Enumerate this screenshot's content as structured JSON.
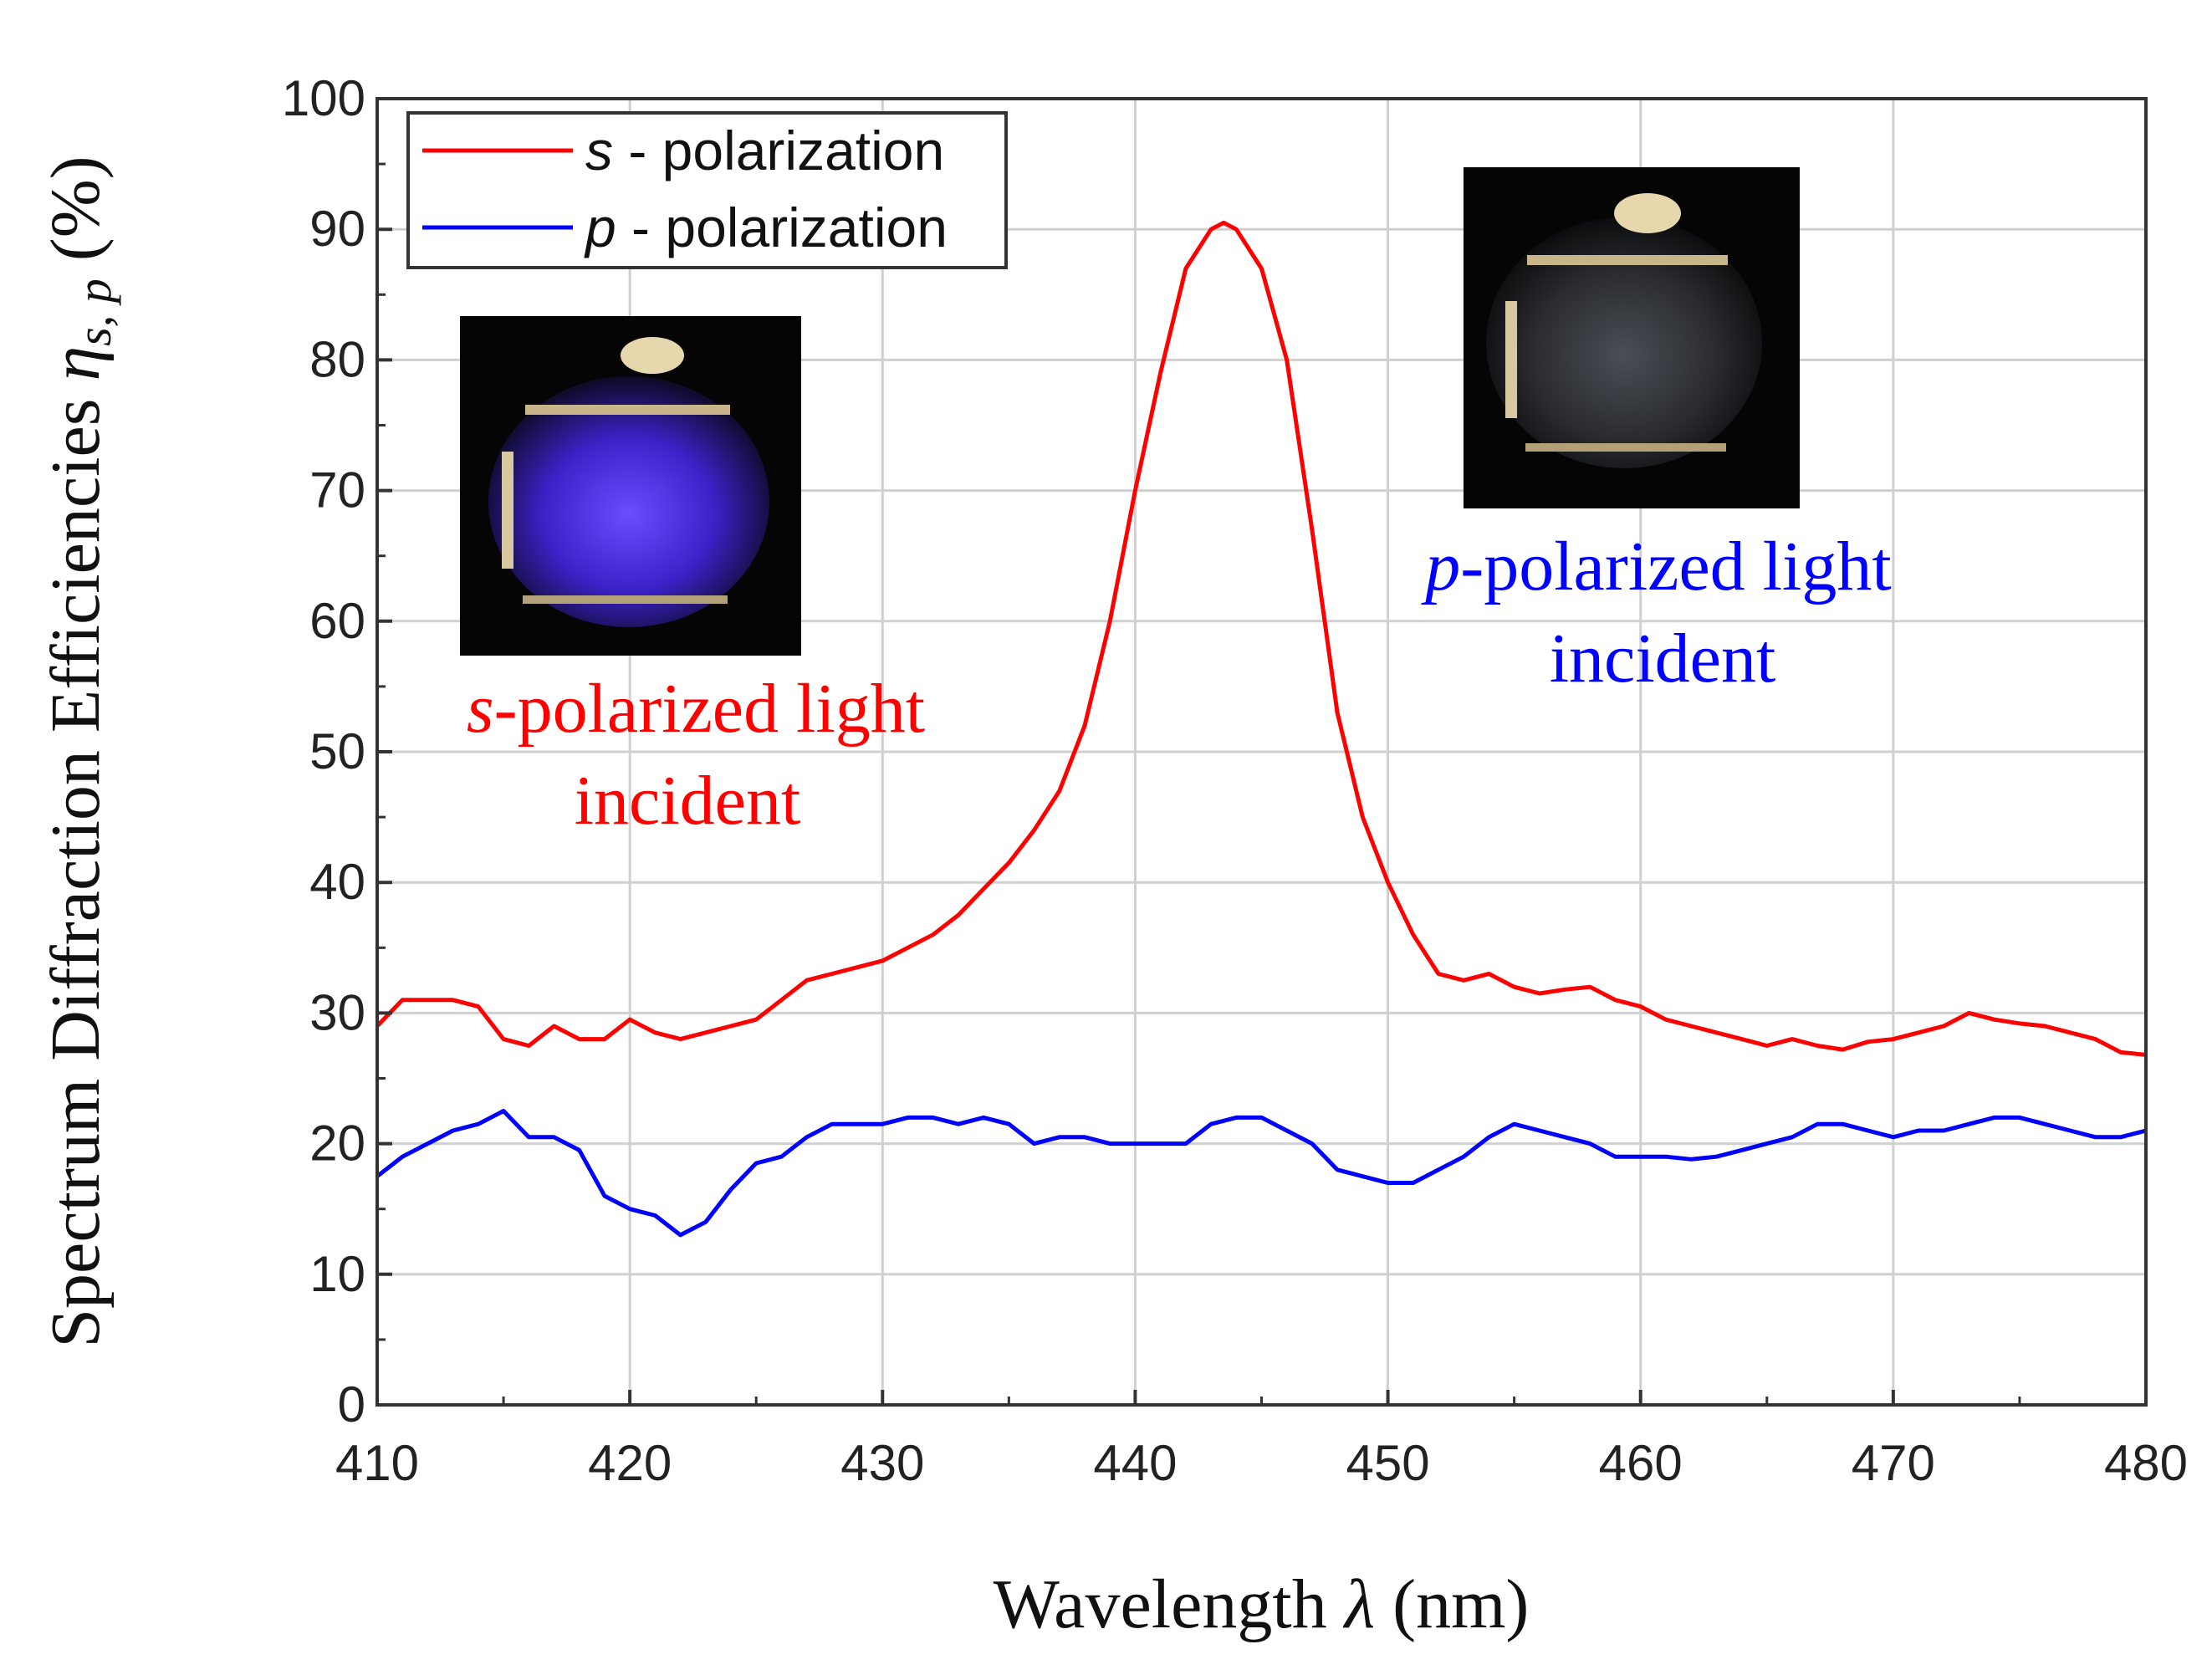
{
  "chart_data": {
    "type": "line",
    "xlabel_prefix": "Wavelength ",
    "xlabel_symbol": "λ",
    "xlabel_suffix": " (nm)",
    "ylabel_prefix": "Spectrum Diffraction Efficiencies ",
    "ylabel_symbol": "η",
    "ylabel_subscript": "s, p",
    "ylabel_suffix": " (%)",
    "xlim": [
      410,
      480
    ],
    "ylim": [
      0,
      100
    ],
    "x_ticks": [
      "410",
      "420",
      "430",
      "440",
      "450",
      "460",
      "470",
      "480"
    ],
    "y_ticks": [
      "0",
      "10",
      "20",
      "30",
      "40",
      "50",
      "60",
      "70",
      "80",
      "90",
      "100"
    ],
    "grid": true,
    "legend_position": "top-left",
    "colors": {
      "s": "#ff0000",
      "p": "#0000ff"
    },
    "series": [
      {
        "name": "s - polarization",
        "symbol": "s",
        "label_rest": " - polarization",
        "color": "#ff0000",
        "x": [
          410,
          411,
          412,
          413,
          414,
          415,
          416,
          417,
          418,
          419,
          420,
          421,
          422,
          423,
          424,
          425,
          426,
          427,
          428,
          429,
          430,
          431,
          432,
          433,
          434,
          435,
          436,
          437,
          438,
          439,
          440,
          441,
          442,
          443,
          443.5,
          444,
          445,
          446,
          447,
          448,
          449,
          450,
          451,
          452,
          453,
          454,
          455,
          456,
          457,
          458,
          459,
          460,
          461,
          462,
          463,
          464,
          465,
          466,
          467,
          468,
          469,
          470,
          471,
          472,
          473,
          474,
          475,
          476,
          477,
          478,
          479,
          480
        ],
        "values": [
          29,
          31,
          31,
          31,
          30.5,
          28,
          27.5,
          29,
          28,
          28,
          29.5,
          28.5,
          28,
          28.5,
          29,
          29.5,
          31,
          32.5,
          33,
          33.5,
          34,
          35,
          36,
          37.5,
          39.5,
          41.5,
          44,
          47,
          52,
          60,
          70,
          79,
          87,
          90,
          90.5,
          90,
          87,
          80,
          67,
          53,
          45,
          40,
          36,
          33,
          32.5,
          33,
          32,
          31.5,
          31.8,
          32,
          31,
          30.5,
          29.5,
          29,
          28.5,
          28,
          27.5,
          28,
          27.5,
          27.2,
          27.8,
          28,
          28.5,
          29,
          30,
          29.5,
          29.2,
          29,
          28.5,
          28,
          27,
          26.8
        ]
      },
      {
        "name": "p - polarization",
        "symbol": "p",
        "label_rest": " - polarization",
        "color": "#0000ff",
        "x": [
          410,
          411,
          412,
          413,
          414,
          415,
          416,
          417,
          418,
          419,
          420,
          421,
          422,
          423,
          424,
          425,
          426,
          427,
          428,
          429,
          430,
          431,
          432,
          433,
          434,
          435,
          436,
          437,
          438,
          439,
          440,
          441,
          442,
          443,
          444,
          445,
          446,
          447,
          448,
          449,
          450,
          451,
          452,
          453,
          454,
          455,
          456,
          457,
          458,
          459,
          460,
          461,
          462,
          463,
          464,
          465,
          466,
          467,
          468,
          469,
          470,
          471,
          472,
          473,
          474,
          475,
          476,
          477,
          478,
          479,
          480
        ],
        "values": [
          17.5,
          19,
          20,
          21,
          21.5,
          22.5,
          20.5,
          20.5,
          19.5,
          16,
          15,
          14.5,
          13,
          14,
          16.5,
          18.5,
          19,
          20.5,
          21.5,
          21.5,
          21.5,
          22,
          22,
          21.5,
          22,
          21.5,
          20,
          20.5,
          20.5,
          20,
          20,
          20,
          20,
          21.5,
          22,
          22,
          21,
          20,
          18,
          17.5,
          17,
          17,
          18,
          19,
          20.5,
          21.5,
          21,
          20.5,
          20,
          19,
          19,
          19,
          18.8,
          19,
          19.5,
          20,
          20.5,
          21.5,
          21.5,
          21,
          20.5,
          21,
          21,
          21.5,
          22,
          22,
          21.5,
          21,
          20.5,
          20.5,
          21
        ]
      }
    ],
    "annotations": [
      {
        "em": "s",
        "rest": "-polarized light",
        "line2": "incident",
        "color": "#ff0000"
      },
      {
        "em": "p",
        "rest": "-polarized light",
        "line2": "incident",
        "color": "#0000ff"
      }
    ],
    "insets": [
      {
        "name": "s-polarized sample photo",
        "glow": "#5a3cff"
      },
      {
        "name": "p-polarized sample photo",
        "glow": "#3a3d42"
      }
    ]
  }
}
